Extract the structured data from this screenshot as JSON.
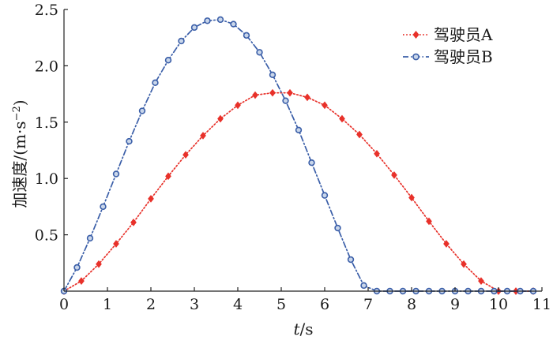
{
  "chart_data": {
    "type": "line",
    "xlabel": "t/s",
    "xlabel_italic": "t",
    "xlabel_rest": "/s",
    "ylabel": "加速度/(m·s⁻²)",
    "ylabel_main": "加速度/(m·s",
    "ylabel_exp": "−2",
    "ylabel_close": ")",
    "xlim": [
      0,
      11
    ],
    "ylim": [
      0,
      2.5
    ],
    "x_ticks": [
      0,
      1,
      2,
      3,
      4,
      5,
      6,
      7,
      8,
      9,
      10,
      11
    ],
    "y_ticks": [
      0.5,
      1.0,
      1.5,
      2.0,
      2.5
    ],
    "x_tick_labels": [
      "0",
      "1",
      "2",
      "3",
      "4",
      "5",
      "6",
      "7",
      "8",
      "9",
      "10",
      "11"
    ],
    "y_tick_labels": [
      "0.5",
      "1.0",
      "1.5",
      "2.0",
      "2.5"
    ],
    "grid": false,
    "legend_position": "top-right",
    "series": [
      {
        "name": "驾驶员A",
        "color": "#e8312a",
        "line_style": "dotted",
        "marker": "diamond",
        "x": [
          0,
          0.4,
          0.8,
          1.2,
          1.6,
          2.0,
          2.4,
          2.8,
          3.2,
          3.6,
          4.0,
          4.4,
          4.8,
          5.2,
          5.6,
          6.0,
          6.4,
          6.8,
          7.2,
          7.6,
          8.0,
          8.4,
          8.8,
          9.2,
          9.6,
          10.0,
          10.4,
          10.8
        ],
        "values": [
          0,
          0.09,
          0.24,
          0.42,
          0.61,
          0.82,
          1.02,
          1.21,
          1.38,
          1.53,
          1.65,
          1.74,
          1.76,
          1.76,
          1.72,
          1.65,
          1.53,
          1.39,
          1.22,
          1.03,
          0.83,
          0.62,
          0.42,
          0.24,
          0.09,
          0,
          0,
          0
        ]
      },
      {
        "name": "驾驶员B",
        "color": "#3a5ea8",
        "line_style": "dashdot",
        "marker": "circle",
        "x": [
          0,
          0.3,
          0.6,
          0.9,
          1.2,
          1.5,
          1.8,
          2.1,
          2.4,
          2.7,
          3.0,
          3.3,
          3.6,
          3.9,
          4.2,
          4.5,
          4.8,
          5.1,
          5.4,
          5.7,
          6.0,
          6.3,
          6.6,
          6.9,
          7.2,
          7.5,
          7.8,
          8.1,
          8.4,
          8.7,
          9.0,
          9.3,
          9.6,
          9.9,
          10.2,
          10.5,
          10.8
        ],
        "values": [
          0,
          0.21,
          0.47,
          0.75,
          1.04,
          1.33,
          1.6,
          1.85,
          2.05,
          2.22,
          2.34,
          2.4,
          2.41,
          2.37,
          2.27,
          2.12,
          1.92,
          1.69,
          1.43,
          1.14,
          0.85,
          0.56,
          0.28,
          0.05,
          0,
          0,
          0,
          0,
          0,
          0,
          0,
          0,
          0,
          0,
          0,
          0,
          0
        ]
      }
    ]
  }
}
